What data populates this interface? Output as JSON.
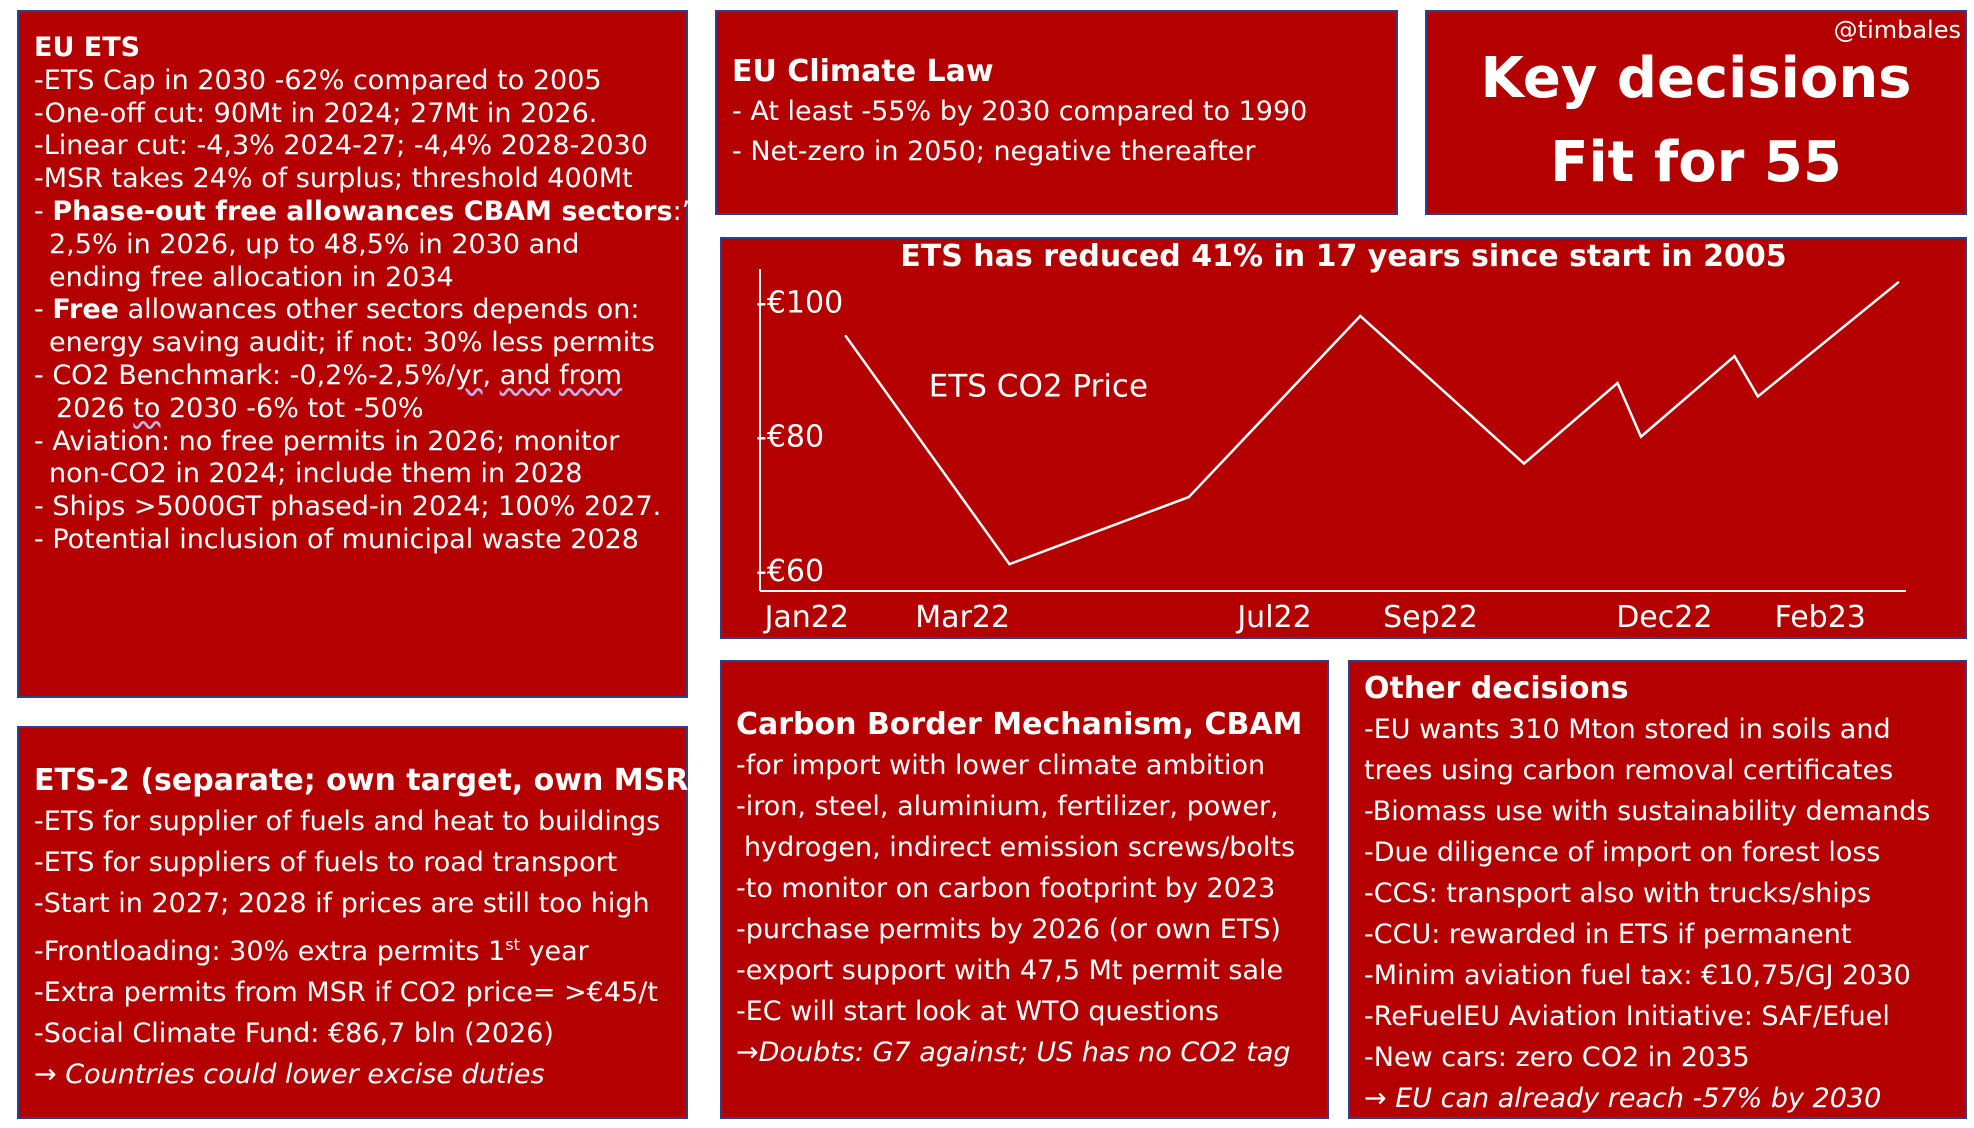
{
  "eu_ets": {
    "title": "EU ETS",
    "l1": "-ETS Cap in 2030 -62% compared to 2005",
    "l2": "-One-off cut: 90Mt in 2024; 27Mt in 2026.",
    "l3": "-Linear cut: -4,3% 2024-27; -4,4% 2028-2030",
    "l4": "-MSR takes 24% of surplus; threshold 400Mt",
    "l5_pre": "- ",
    "l5_bold": "Phase-out free allowances CBAM sectors",
    "l5_post": ":”",
    "l6": "2,5% in 2026, up to 48,5% in 2030 and",
    "l7": "ending free allocation in 2034",
    "l8_pre": "- ",
    "l8_bold": "Free",
    "l8_post": " allowances other sectors depends on:",
    "l9": "energy saving audit; if not: 30% less permits",
    "l10_pre": "-  CO2 Benchmark: -0,2%-2,5%/",
    "l10_yr": "yr",
    "l10_mid": ", ",
    "l10_and": "and",
    "l10_sp": " ",
    "l10_from": "from",
    "l11_pre": "2026 ",
    "l11_to": "to",
    "l11_post": " 2030 -6% tot -50%",
    "l12": "- Aviation: no free permits in 2026; monitor",
    "l13": "non-CO2 in 2024; include them in 2028",
    "l14": "- Ships >5000GT phased-in 2024; 100% 2027.",
    "l15": "- Potential inclusion of municipal waste 2028"
  },
  "ets2": {
    "title": "ETS-2 (separate; own target, own MSR)",
    "l1": "-ETS for supplier of fuels and heat to buildings",
    "l2": "-ETS for suppliers of fuels to road transport",
    "l3": "-Start in 2027; 2028 if prices are still too high",
    "l4_pre": "-Frontloading: 30% extra permits 1",
    "l4_sup": "st",
    "l4_post": " year",
    "l5": "-Extra permits from MSR if CO2 price= >€45/t",
    "l6": "-Social Climate Fund: €86,7 bln (2026)",
    "l7_arrow": "→ ",
    "l7_text": "Countries could lower excise duties"
  },
  "climate_law": {
    "title": "EU Climate Law",
    "l1": "- At least -55% by 2030 compared to 1990",
    "l2": "- Net-zero in 2050; negative thereafter"
  },
  "key": {
    "handle": "@timbales",
    "line1": "Key decisions",
    "line2": "Fit for 55"
  },
  "chart_box": {
    "title": "ETS has reduced 41% in 17 years since start in 2005"
  },
  "chart_data": {
    "type": "line",
    "title": "ETS has reduced 41% in 17 years since start in 2005",
    "series": [
      {
        "name": "ETS CO2 Price",
        "x": [
          0.5,
          2.6,
          4.9,
          7.1,
          9.2,
          10.4,
          10.7,
          11.9,
          12.2,
          14.0
        ],
        "values": [
          95,
          61,
          71,
          98,
          76,
          88,
          80,
          92,
          86,
          103
        ]
      }
    ],
    "xticks": [
      {
        "x": 0,
        "label": "Jan22"
      },
      {
        "x": 2,
        "label": "Mar22"
      },
      {
        "x": 6,
        "label": "Jul22"
      },
      {
        "x": 8,
        "label": "Sep22"
      },
      {
        "x": 11,
        "label": "Dec22"
      },
      {
        "x": 13,
        "label": "Feb23"
      }
    ],
    "yticks": [
      {
        "y": 100,
        "label": "-€100"
      },
      {
        "y": 80,
        "label": "-€80"
      },
      {
        "y": 60,
        "label": "-€60"
      }
    ],
    "xlim": [
      -0.6,
      14.1
    ],
    "ylim": [
      57,
      105
    ],
    "grid": false,
    "color": "#ffffff"
  },
  "cbam": {
    "title": "Carbon Border Mechanism, CBAM",
    "l1": "-for import with lower climate ambition",
    "l2": "-iron, steel, aluminium, fertilizer, power,",
    "l3": "hydrogen, indirect emission screws/bolts",
    "l4": "-to monitor on carbon footprint by 2023",
    "l5": "-purchase permits by 2026 (or own ETS)",
    "l6": "-export support with 47,5 Mt permit sale",
    "l7": "-EC will start look at WTO questions",
    "l8_arrow": "→",
    "l8_text": "Doubts: G7 against; US has no CO2 tag"
  },
  "other": {
    "title": "Other decisions",
    "l1": "-EU wants 310 Mton stored in soils and",
    "l2": "trees using carbon removal certificates",
    "l3": "-Biomass use with sustainability demands",
    "l4": "-Due diligence of import on forest loss",
    "l5": "-CCS: transport also with trucks/ships",
    "l6": "-CCU: rewarded in ETS if permanent",
    "l7": "-Minim aviation fuel tax: €10,75/GJ 2030",
    "l8": "-ReFuelEU Aviation Initiative: SAF/Efuel",
    "l9": "-New cars: zero CO2 in 2035",
    "l10_arrow": "→ ",
    "l10_text": "EU can already reach -57% by 2030"
  }
}
